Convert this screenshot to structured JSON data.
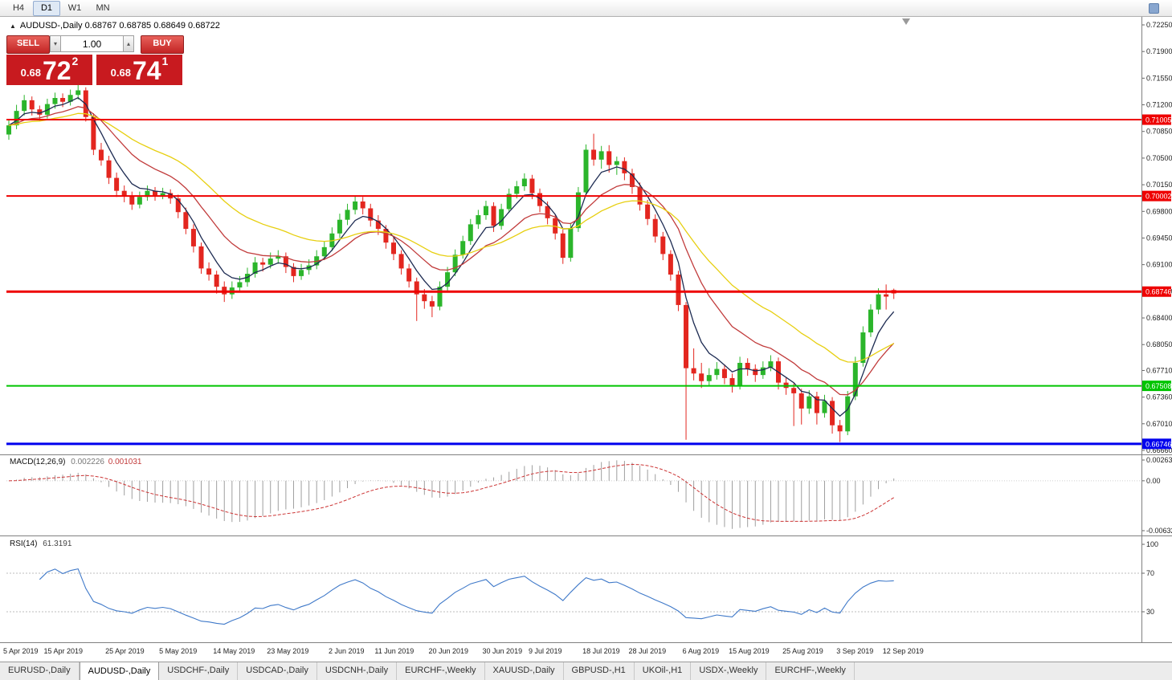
{
  "toolbar": {
    "periods": [
      "H4",
      "D1",
      "W1",
      "MN"
    ],
    "active": "D1"
  },
  "window": {
    "symbol_line": "AUDUSD-,Daily 0.68767 0.68785 0.68649 0.68722"
  },
  "one_click": {
    "sell_label": "SELL",
    "buy_label": "BUY",
    "volume": "1.00",
    "sell": {
      "prefix": "0.68",
      "big": "72",
      "sup": "2"
    },
    "buy": {
      "prefix": "0.68",
      "big": "74",
      "sup": "1"
    }
  },
  "chart_data": [
    {
      "type": "candlestick",
      "title": "AUDUSD-,Daily",
      "timeframe": "Daily",
      "ohlc_display": {
        "open": "0.68767",
        "high": "0.68785",
        "low": "0.68649",
        "close": "0.68722"
      },
      "up_color": "#2bb52b",
      "down_color": "#e3261f",
      "y_ticks": [
        "0.72250",
        "0.71900",
        "0.71550",
        "0.71200",
        "0.70850",
        "0.70500",
        "0.70150",
        "0.69800",
        "0.69450",
        "0.69100",
        "0.68750",
        "0.68400",
        "0.68050",
        "0.67710",
        "0.67360",
        "0.67010",
        "0.66660"
      ],
      "x_labels": [
        [
          "5 Apr 2019",
          0
        ],
        [
          "15 Apr 2019",
          6
        ],
        [
          "25 Apr 2019",
          14
        ],
        [
          "5 May 2019",
          21
        ],
        [
          "14 May 2019",
          28
        ],
        [
          "23 May 2019",
          35
        ],
        [
          "2 Jun 2019",
          43
        ],
        [
          "11 Jun 2019",
          49
        ],
        [
          "20 Jun 2019",
          56
        ],
        [
          "30 Jun 2019",
          63
        ],
        [
          "9 Jul 2019",
          69
        ],
        [
          "18 Jul 2019",
          76
        ],
        [
          "28 Jul 2019",
          82
        ],
        [
          "6 Aug 2019",
          89
        ],
        [
          "15 Aug 2019",
          95
        ],
        [
          "25 Aug 2019",
          102
        ],
        [
          "3 Sep 2019",
          109
        ],
        [
          "12 Sep 2019",
          115
        ]
      ],
      "levels": [
        {
          "price": 0.71005,
          "label": "0.71005",
          "color": "#ee0000",
          "width": 2
        },
        {
          "price": 0.70002,
          "label": "0.70002",
          "color": "#ee0000",
          "width": 2
        },
        {
          "price": 0.68746,
          "label": "0.68746",
          "color": "#ee0000",
          "width": 3
        },
        {
          "price": 0.67508,
          "label": "0.67508",
          "color": "#00c400",
          "width": 2
        },
        {
          "price": 0.66746,
          "label": "0.66746",
          "color": "#0000ee",
          "width": 3
        }
      ],
      "overlays": [
        {
          "name": "ma-fast-line",
          "period": 5,
          "color": "#1d2b52"
        },
        {
          "name": "ma-mid-line",
          "period": 13,
          "color": "#c13b3b"
        },
        {
          "name": "ma-slow-line",
          "period": 26,
          "color": "#e7cf10"
        }
      ],
      "candles": [
        [
          0.7081,
          0.7101,
          0.7074,
          0.7093
        ],
        [
          0.7093,
          0.712,
          0.7088,
          0.7112
        ],
        [
          0.7112,
          0.7133,
          0.7106,
          0.7126
        ],
        [
          0.7126,
          0.7131,
          0.7106,
          0.7114
        ],
        [
          0.7114,
          0.7119,
          0.7099,
          0.7107
        ],
        [
          0.7107,
          0.7128,
          0.7102,
          0.7121
        ],
        [
          0.7121,
          0.7136,
          0.7115,
          0.7129
        ],
        [
          0.7129,
          0.7135,
          0.7117,
          0.7124
        ],
        [
          0.7124,
          0.714,
          0.7119,
          0.7133
        ],
        [
          0.7133,
          0.7148,
          0.7127,
          0.7139
        ],
        [
          0.7139,
          0.7143,
          0.7098,
          0.7104
        ],
        [
          0.7104,
          0.7109,
          0.7054,
          0.7061
        ],
        [
          0.7061,
          0.707,
          0.704,
          0.7047
        ],
        [
          0.7047,
          0.7053,
          0.7016,
          0.7024
        ],
        [
          0.7024,
          0.7031,
          0.6999,
          0.7007
        ],
        [
          0.7007,
          0.7014,
          0.6992,
          0.7
        ],
        [
          0.7,
          0.7006,
          0.6982,
          0.6989
        ],
        [
          0.6989,
          0.7006,
          0.6984,
          0.6999
        ],
        [
          0.6999,
          0.7014,
          0.6994,
          0.7007
        ],
        [
          0.7007,
          0.7012,
          0.6994,
          0.7001
        ],
        [
          0.7001,
          0.7011,
          0.6996,
          0.7004
        ],
        [
          0.7004,
          0.7009,
          0.699,
          0.6997
        ],
        [
          0.6997,
          0.7002,
          0.6971,
          0.6979
        ],
        [
          0.6979,
          0.6985,
          0.695,
          0.6957
        ],
        [
          0.6957,
          0.6963,
          0.6926,
          0.6934
        ],
        [
          0.6934,
          0.6939,
          0.6898,
          0.6905
        ],
        [
          0.6905,
          0.6913,
          0.6889,
          0.6897
        ],
        [
          0.6897,
          0.6902,
          0.6872,
          0.6881
        ],
        [
          0.6881,
          0.6888,
          0.6861,
          0.6871
        ],
        [
          0.6871,
          0.6888,
          0.6865,
          0.688
        ],
        [
          0.688,
          0.6895,
          0.6874,
          0.6887
        ],
        [
          0.6887,
          0.6906,
          0.6881,
          0.6898
        ],
        [
          0.6898,
          0.692,
          0.6893,
          0.6913
        ],
        [
          0.6913,
          0.6919,
          0.6901,
          0.691
        ],
        [
          0.691,
          0.6926,
          0.6905,
          0.6918
        ],
        [
          0.6918,
          0.6929,
          0.6911,
          0.6921
        ],
        [
          0.6921,
          0.6926,
          0.6899,
          0.6907
        ],
        [
          0.6907,
          0.6912,
          0.6887,
          0.6895
        ],
        [
          0.6895,
          0.6911,
          0.689,
          0.6903
        ],
        [
          0.6903,
          0.6917,
          0.6897,
          0.6909
        ],
        [
          0.6909,
          0.6929,
          0.6904,
          0.6921
        ],
        [
          0.6921,
          0.6941,
          0.6916,
          0.6933
        ],
        [
          0.6933,
          0.6959,
          0.6928,
          0.6951
        ],
        [
          0.6951,
          0.6977,
          0.6945,
          0.6969
        ],
        [
          0.6969,
          0.699,
          0.6962,
          0.6982
        ],
        [
          0.6982,
          0.7001,
          0.6976,
          0.6993
        ],
        [
          0.6993,
          0.6999,
          0.6976,
          0.6984
        ],
        [
          0.6984,
          0.699,
          0.696,
          0.6968
        ],
        [
          0.6968,
          0.6975,
          0.6949,
          0.6957
        ],
        [
          0.6957,
          0.6962,
          0.6931,
          0.6939
        ],
        [
          0.6939,
          0.6946,
          0.6916,
          0.6924
        ],
        [
          0.6924,
          0.6929,
          0.6897,
          0.6905
        ],
        [
          0.6905,
          0.6911,
          0.688,
          0.6888
        ],
        [
          0.6888,
          0.6893,
          0.6836,
          0.6871
        ],
        [
          0.6871,
          0.6878,
          0.6852,
          0.6862
        ],
        [
          0.6862,
          0.6869,
          0.6841,
          0.6855
        ],
        [
          0.6855,
          0.6888,
          0.685,
          0.6881
        ],
        [
          0.6881,
          0.6907,
          0.6876,
          0.69
        ],
        [
          0.69,
          0.693,
          0.6895,
          0.6923
        ],
        [
          0.6923,
          0.6948,
          0.6918,
          0.6941
        ],
        [
          0.6941,
          0.697,
          0.6936,
          0.6963
        ],
        [
          0.6963,
          0.6982,
          0.6957,
          0.6975
        ],
        [
          0.6975,
          0.6994,
          0.6969,
          0.6987
        ],
        [
          0.6987,
          0.6992,
          0.6953,
          0.6961
        ],
        [
          0.6961,
          0.699,
          0.6956,
          0.6983
        ],
        [
          0.6983,
          0.701,
          0.6978,
          0.7003
        ],
        [
          0.7003,
          0.702,
          0.6997,
          0.7013
        ],
        [
          0.7013,
          0.703,
          0.7007,
          0.7023
        ],
        [
          0.7023,
          0.7028,
          0.6996,
          0.7004
        ],
        [
          0.7004,
          0.701,
          0.6979,
          0.6987
        ],
        [
          0.6987,
          0.6993,
          0.6963,
          0.6971
        ],
        [
          0.6971,
          0.6976,
          0.6943,
          0.6951
        ],
        [
          0.6951,
          0.6956,
          0.6911,
          0.6919
        ],
        [
          0.6919,
          0.6965,
          0.6914,
          0.6958
        ],
        [
          0.6958,
          0.7012,
          0.6953,
          0.7005
        ],
        [
          0.7005,
          0.7068,
          0.7,
          0.7061
        ],
        [
          0.7061,
          0.7082,
          0.704,
          0.7048
        ],
        [
          0.7048,
          0.7066,
          0.7036,
          0.7059
        ],
        [
          0.7059,
          0.7067,
          0.7031,
          0.7041
        ],
        [
          0.7041,
          0.7052,
          0.7028,
          0.7046
        ],
        [
          0.7046,
          0.7051,
          0.7021,
          0.703
        ],
        [
          0.703,
          0.7036,
          0.7003,
          0.7012
        ],
        [
          0.7012,
          0.7018,
          0.6981,
          0.6989
        ],
        [
          0.6989,
          0.6995,
          0.6962,
          0.697
        ],
        [
          0.697,
          0.6976,
          0.6939,
          0.6947
        ],
        [
          0.6947,
          0.6953,
          0.6916,
          0.6924
        ],
        [
          0.6924,
          0.6929,
          0.6889,
          0.6897
        ],
        [
          0.6897,
          0.6902,
          0.6849,
          0.6857
        ],
        [
          0.6857,
          0.6861,
          0.668,
          0.6774
        ],
        [
          0.6774,
          0.68,
          0.6758,
          0.6767
        ],
        [
          0.6767,
          0.6781,
          0.6748,
          0.6757
        ],
        [
          0.6757,
          0.6774,
          0.6751,
          0.6765
        ],
        [
          0.6765,
          0.6782,
          0.6759,
          0.6773
        ],
        [
          0.6773,
          0.6779,
          0.6753,
          0.6761
        ],
        [
          0.6761,
          0.6767,
          0.6742,
          0.6751
        ],
        [
          0.6751,
          0.6789,
          0.6746,
          0.6781
        ],
        [
          0.6781,
          0.6787,
          0.6764,
          0.6773
        ],
        [
          0.6773,
          0.6779,
          0.6756,
          0.6765
        ],
        [
          0.6765,
          0.6783,
          0.676,
          0.6775
        ],
        [
          0.6775,
          0.6791,
          0.677,
          0.6783
        ],
        [
          0.6783,
          0.6788,
          0.6746,
          0.6755
        ],
        [
          0.6755,
          0.6762,
          0.6739,
          0.6748
        ],
        [
          0.6748,
          0.6754,
          0.6698,
          0.6741
        ],
        [
          0.6741,
          0.6747,
          0.67,
          0.6721
        ],
        [
          0.6721,
          0.6745,
          0.6714,
          0.6737
        ],
        [
          0.6737,
          0.6743,
          0.67,
          0.6715
        ],
        [
          0.6715,
          0.6739,
          0.6709,
          0.6731
        ],
        [
          0.6731,
          0.6736,
          0.6688,
          0.6699
        ],
        [
          0.6699,
          0.6706,
          0.6677,
          0.6691
        ],
        [
          0.6691,
          0.6744,
          0.6686,
          0.6737
        ],
        [
          0.6737,
          0.6789,
          0.6732,
          0.6781
        ],
        [
          0.6781,
          0.6829,
          0.6776,
          0.6821
        ],
        [
          0.6821,
          0.6858,
          0.6815,
          0.6851
        ],
        [
          0.6851,
          0.6879,
          0.6845,
          0.6871
        ],
        [
          0.6871,
          0.6884,
          0.6851,
          0.6868
        ],
        [
          0.68767,
          0.68785,
          0.68649,
          0.68722
        ]
      ]
    },
    {
      "type": "macd",
      "title": "MACD(12,26,9)",
      "params": [
        12,
        26,
        9
      ],
      "current_values": [
        "0.002226",
        "0.001031"
      ],
      "y_ticks": [
        "0.00263",
        "0.00",
        "-0.00632"
      ],
      "histogram_color": "#9e9e9e",
      "signal_color": "#cc3434"
    },
    {
      "type": "rsi",
      "title": "RSI(14)",
      "params": [
        14
      ],
      "current_value": "61.3191",
      "y_ticks": [
        "100",
        "70",
        "30"
      ],
      "levels": [
        70,
        30
      ],
      "line_color": "#3f79c9"
    }
  ],
  "tabs": [
    {
      "label": "EURUSD-,Daily",
      "active": false
    },
    {
      "label": "AUDUSD-,Daily",
      "active": true
    },
    {
      "label": "USDCHF-,Daily",
      "active": false
    },
    {
      "label": "USDCAD-,Daily",
      "active": false
    },
    {
      "label": "USDCNH-,Daily",
      "active": false
    },
    {
      "label": "EURCHF-,Weekly",
      "active": false
    },
    {
      "label": "XAUUSD-,Daily",
      "active": false
    },
    {
      "label": "GBPUSD-,H1",
      "active": false
    },
    {
      "label": "UKOil-,H1",
      "active": false
    },
    {
      "label": "USDX-,Weekly",
      "active": false
    },
    {
      "label": "EURCHF-,Weekly",
      "active": false
    }
  ]
}
